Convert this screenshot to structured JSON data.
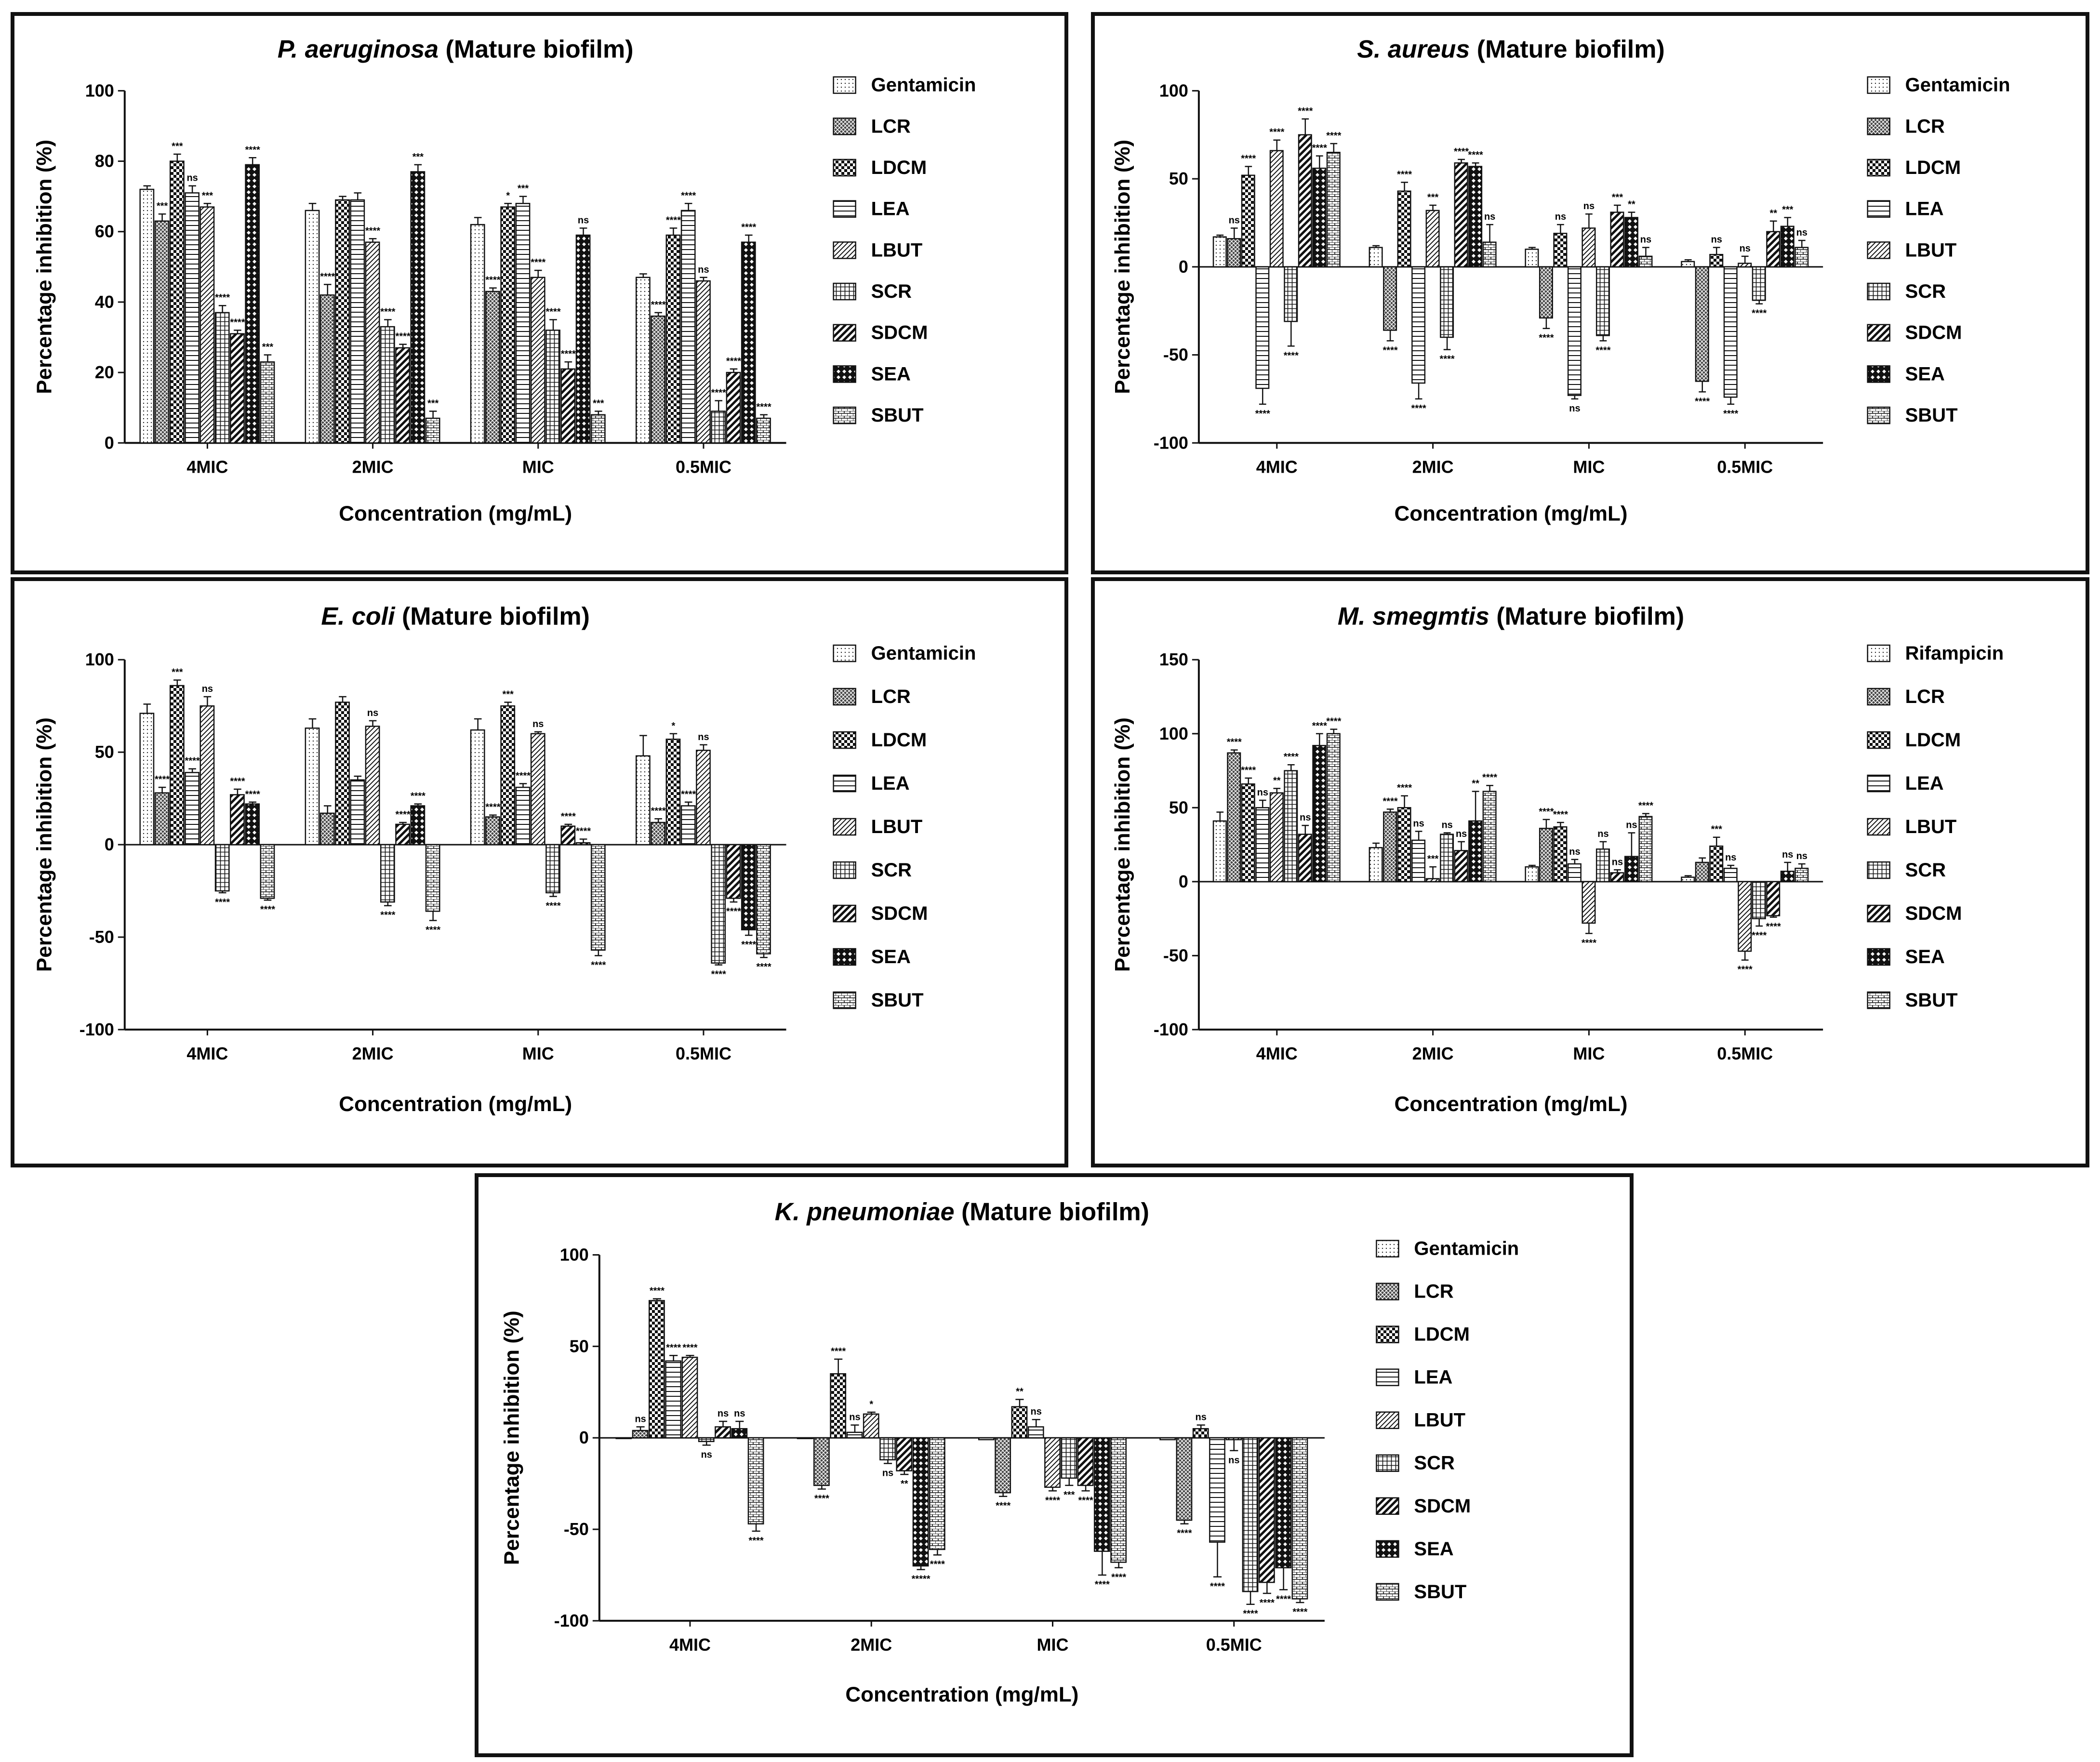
{
  "series_names": [
    "Gentamicin",
    "LCR",
    "LDCM",
    "LEA",
    "LBUT",
    "SCR",
    "SDCM",
    "SEA",
    "SBUT"
  ],
  "patterns": [
    "pdots",
    "pcross",
    "pcheck",
    "phoriz",
    "pdiag",
    "pgrid",
    "pdiagthick",
    "pdiamond",
    "pbrick"
  ],
  "chart_data": [
    {
      "id": "p1",
      "type": "bar",
      "title_italic": "P. aeruginosa",
      "title_rest": " (Mature biofilm)",
      "xlabel": "Concentration (mg/mL)",
      "ylabel": "Percentage inhibition (%)",
      "categories": [
        "4MIC",
        "2MIC",
        "MIC",
        "0.5MIC"
      ],
      "ylim": [
        0,
        100
      ],
      "yticks": [
        0,
        20,
        40,
        60,
        80,
        100
      ],
      "series": [
        {
          "name": "Gentamicin",
          "values": [
            72,
            66,
            62,
            47
          ],
          "err": [
            1,
            2,
            2,
            1
          ],
          "sig": [
            "",
            "",
            "",
            ""
          ]
        },
        {
          "name": "LCR",
          "values": [
            63,
            42,
            43,
            36
          ],
          "err": [
            2,
            3,
            1,
            1
          ],
          "sig": [
            "***",
            "****",
            "****",
            "****"
          ]
        },
        {
          "name": "LDCM",
          "values": [
            80,
            69,
            67,
            59
          ],
          "err": [
            2,
            1,
            1,
            2
          ],
          "sig": [
            "***",
            "",
            "*",
            "****"
          ]
        },
        {
          "name": "LEA",
          "values": [
            71,
            69,
            68,
            66
          ],
          "err": [
            2,
            2,
            2,
            2
          ],
          "sig": [
            "ns",
            "",
            "***",
            "****"
          ]
        },
        {
          "name": "LBUT",
          "values": [
            67,
            57,
            47,
            46
          ],
          "err": [
            1,
            1,
            2,
            1
          ],
          "sig": [
            "***",
            "****",
            "****",
            "ns"
          ]
        },
        {
          "name": "SCR",
          "values": [
            37,
            33,
            32,
            9
          ],
          "err": [
            2,
            2,
            3,
            3
          ],
          "sig": [
            "****",
            "****",
            "****",
            "****"
          ]
        },
        {
          "name": "SDCM",
          "values": [
            31,
            27,
            21,
            20
          ],
          "err": [
            1,
            1,
            2,
            1
          ],
          "sig": [
            "****",
            "****",
            "****",
            "****"
          ]
        },
        {
          "name": "SEA",
          "values": [
            79,
            77,
            59,
            57
          ],
          "err": [
            2,
            2,
            2,
            2
          ],
          "sig": [
            "****",
            "***",
            "ns",
            "****"
          ]
        },
        {
          "name": "SBUT",
          "values": [
            23,
            7,
            8,
            7
          ],
          "err": [
            2,
            2,
            1,
            1
          ],
          "sig": [
            "***",
            "***",
            "***",
            "****"
          ]
        }
      ],
      "legend": [
        "Gentamicin",
        "LCR",
        "LDCM",
        "LEA",
        "LBUT",
        "SCR",
        "SDCM",
        "SEA",
        "SBUT"
      ]
    },
    {
      "id": "p2",
      "type": "bar",
      "title_italic": "S. aureus",
      "title_rest": " (Mature biofilm)",
      "xlabel": "Concentration (mg/mL)",
      "ylabel": "Percentage inhibition (%)",
      "categories": [
        "4MIC",
        "2MIC",
        "MIC",
        "0.5MIC"
      ],
      "ylim": [
        -100,
        100
      ],
      "yticks": [
        -100,
        -50,
        0,
        50,
        100
      ],
      "series": [
        {
          "name": "Gentamicin",
          "values": [
            17,
            11,
            10,
            3
          ],
          "err": [
            1,
            1,
            1,
            1
          ],
          "sig": [
            "",
            "",
            "",
            ""
          ]
        },
        {
          "name": "LCR",
          "values": [
            16,
            -36,
            -29,
            -65
          ],
          "err": [
            6,
            6,
            6,
            6
          ],
          "sig": [
            "ns",
            "****",
            "****",
            "****"
          ]
        },
        {
          "name": "LDCM",
          "values": [
            52,
            43,
            19,
            7
          ],
          "err": [
            5,
            5,
            5,
            4
          ],
          "sig": [
            "****",
            "****",
            "ns",
            "ns"
          ]
        },
        {
          "name": "LEA",
          "values": [
            -69,
            -66,
            -73,
            -74
          ],
          "err": [
            9,
            9,
            2,
            4
          ],
          "sig": [
            "****",
            "****",
            "ns",
            "****"
          ]
        },
        {
          "name": "LBUT",
          "values": [
            66,
            32,
            22,
            2
          ],
          "err": [
            6,
            3,
            8,
            4
          ],
          "sig": [
            "****",
            "***",
            "ns",
            "ns"
          ]
        },
        {
          "name": "SCR",
          "values": [
            -31,
            -40,
            -39,
            -19
          ],
          "err": [
            14,
            7,
            3,
            2
          ],
          "sig": [
            "****",
            "****",
            "****",
            "****"
          ]
        },
        {
          "name": "SDCM",
          "values": [
            75,
            59,
            31,
            20
          ],
          "err": [
            9,
            2,
            4,
            6
          ],
          "sig": [
            "****",
            "****",
            "***",
            "**"
          ]
        },
        {
          "name": "SEA",
          "values": [
            56,
            57,
            28,
            23
          ],
          "err": [
            7,
            2,
            3,
            5
          ],
          "sig": [
            "****",
            "****",
            "**",
            "***"
          ]
        },
        {
          "name": "SBUT",
          "values": [
            65,
            14,
            6,
            11
          ],
          "err": [
            5,
            10,
            5,
            4
          ],
          "sig": [
            "****",
            "ns",
            "ns",
            "ns"
          ]
        }
      ],
      "legend": [
        "Gentamicin",
        "LCR",
        "LDCM",
        "LEA",
        "LBUT",
        "SCR",
        "SDCM",
        "SEA",
        "SBUT"
      ]
    },
    {
      "id": "p3",
      "type": "bar",
      "title_italic": "E. coli",
      "title_rest": " (Mature biofilm)",
      "xlabel": "Concentration (mg/mL)",
      "ylabel": "Percentage inhibition (%)",
      "categories": [
        "4MIC",
        "2MIC",
        "MIC",
        "0.5MIC"
      ],
      "ylim": [
        -100,
        100
      ],
      "yticks": [
        -100,
        -50,
        0,
        50,
        100
      ],
      "series": [
        {
          "name": "Gentamicin",
          "values": [
            71,
            63,
            62,
            48
          ],
          "err": [
            5,
            5,
            6,
            11
          ],
          "sig": [
            "",
            "",
            "",
            ""
          ]
        },
        {
          "name": "LCR",
          "values": [
            28,
            17,
            15,
            12
          ],
          "err": [
            3,
            4,
            1,
            2
          ],
          "sig": [
            "****",
            "",
            "****",
            "****"
          ]
        },
        {
          "name": "LDCM",
          "values": [
            86,
            77,
            75,
            57
          ],
          "err": [
            3,
            3,
            2,
            3
          ],
          "sig": [
            "***",
            "",
            "***",
            "*"
          ]
        },
        {
          "name": "LEA",
          "values": [
            39,
            35,
            31,
            21
          ],
          "err": [
            2,
            2,
            2,
            2
          ],
          "sig": [
            "****",
            "",
            "****",
            "****"
          ]
        },
        {
          "name": "LBUT",
          "values": [
            75,
            64,
            60,
            51
          ],
          "err": [
            5,
            3,
            1,
            3
          ],
          "sig": [
            "ns",
            "ns",
            "ns",
            "ns"
          ]
        },
        {
          "name": "SCR",
          "values": [
            -25,
            -31,
            -26,
            -64
          ],
          "err": [
            1,
            2,
            2,
            1
          ],
          "sig": [
            "****",
            "****",
            "****",
            "****"
          ]
        },
        {
          "name": "SDCM",
          "values": [
            27,
            11,
            10,
            -29
          ],
          "err": [
            3,
            1,
            1,
            2
          ],
          "sig": [
            "****",
            "****",
            "****",
            "****"
          ]
        },
        {
          "name": "SEA",
          "values": [
            22,
            21,
            1,
            -46
          ],
          "err": [
            1,
            1,
            2,
            3
          ],
          "sig": [
            "****",
            "****",
            "****",
            "****"
          ]
        },
        {
          "name": "SBUT",
          "values": [
            -29,
            -36,
            -57,
            -59
          ],
          "err": [
            1,
            5,
            3,
            2
          ],
          "sig": [
            "****",
            "****",
            "****",
            "****"
          ]
        }
      ],
      "legend": [
        "Gentamicin",
        "LCR",
        "LDCM",
        "LEA",
        "LBUT",
        "SCR",
        "SDCM",
        "SEA",
        "SBUT"
      ]
    },
    {
      "id": "p4",
      "type": "bar",
      "title_italic": "M. smegmtis",
      "title_rest": " (Mature biofilm)",
      "xlabel": "Concentration (mg/mL)",
      "ylabel": "Percentage inhibition (%)",
      "categories": [
        "4MIC",
        "2MIC",
        "MIC",
        "0.5MIC"
      ],
      "ylim": [
        -100,
        150
      ],
      "yticks": [
        -100,
        -50,
        0,
        50,
        100,
        150
      ],
      "series": [
        {
          "name": "Rifampicin",
          "values": [
            41,
            23,
            10,
            3
          ],
          "err": [
            6,
            3,
            1,
            1
          ],
          "sig": [
            "",
            "",
            "",
            ""
          ]
        },
        {
          "name": "LCR",
          "values": [
            87,
            47,
            36,
            13
          ],
          "err": [
            2,
            2,
            6,
            3
          ],
          "sig": [
            "****",
            "****",
            "****",
            ""
          ]
        },
        {
          "name": "LDCM",
          "values": [
            66,
            50,
            37,
            24
          ],
          "err": [
            4,
            8,
            3,
            6
          ],
          "sig": [
            "****",
            "****",
            "****",
            "***"
          ]
        },
        {
          "name": "LEA",
          "values": [
            50,
            28,
            12,
            9
          ],
          "err": [
            5,
            6,
            3,
            2
          ],
          "sig": [
            "ns",
            "ns",
            "ns",
            "ns"
          ]
        },
        {
          "name": "LBUT",
          "values": [
            60,
            2,
            -28,
            -47
          ],
          "err": [
            3,
            8,
            7,
            6
          ],
          "sig": [
            "**",
            "***",
            "****",
            "****"
          ]
        },
        {
          "name": "SCR",
          "values": [
            75,
            32,
            22,
            -25
          ],
          "err": [
            4,
            1,
            5,
            5
          ],
          "sig": [
            "****",
            "ns",
            "ns",
            "****"
          ]
        },
        {
          "name": "SDCM",
          "values": [
            32,
            21,
            6,
            -23
          ],
          "err": [
            6,
            6,
            2,
            1
          ],
          "sig": [
            "ns",
            "ns",
            "ns",
            "****"
          ]
        },
        {
          "name": "SEA",
          "values": [
            92,
            41,
            17,
            7
          ],
          "err": [
            8,
            20,
            16,
            6
          ],
          "sig": [
            "****",
            "**",
            "ns",
            "ns"
          ]
        },
        {
          "name": "SBUT",
          "values": [
            100,
            61,
            44,
            9
          ],
          "err": [
            3,
            4,
            2,
            3
          ],
          "sig": [
            "****",
            "****",
            "****",
            "ns"
          ]
        }
      ],
      "legend": [
        "Rifampicin",
        "LCR",
        "LDCM",
        "LEA",
        "LBUT",
        "SCR",
        "SDCM",
        "SEA",
        "SBUT"
      ]
    },
    {
      "id": "p5",
      "type": "bar",
      "title_italic": "K. pneumoniae",
      "title_rest": " (Mature biofilm)",
      "xlabel": "Concentration (mg/mL)",
      "ylabel": "Percentage inhibition (%)",
      "categories": [
        "4MIC",
        "2MIC",
        "MIC",
        "0.5MIC"
      ],
      "ylim": [
        -100,
        100
      ],
      "yticks": [
        -100,
        -50,
        0,
        50,
        100
      ],
      "series": [
        {
          "name": "Gentamicin",
          "values": [
            0,
            0,
            -1,
            -1
          ],
          "err": [
            0,
            0,
            0,
            0
          ],
          "sig": [
            "",
            "",
            "",
            ""
          ]
        },
        {
          "name": "LCR",
          "values": [
            4,
            -26,
            -30,
            -45
          ],
          "err": [
            2,
            2,
            2,
            2
          ],
          "sig": [
            "ns",
            "****",
            "****",
            "****"
          ]
        },
        {
          "name": "LDCM",
          "values": [
            75,
            35,
            17,
            5
          ],
          "err": [
            1,
            8,
            4,
            2
          ],
          "sig": [
            "****",
            "****",
            "**",
            "ns"
          ]
        },
        {
          "name": "LEA",
          "values": [
            42,
            3,
            6,
            -57
          ],
          "err": [
            3,
            4,
            4,
            19
          ],
          "sig": [
            "****",
            "ns",
            "ns",
            "****"
          ]
        },
        {
          "name": "LBUT",
          "values": [
            44,
            13,
            -27,
            -1
          ],
          "err": [
            1,
            1,
            2,
            6
          ],
          "sig": [
            "****",
            "*",
            "****",
            "ns"
          ]
        },
        {
          "name": "SCR",
          "values": [
            -2,
            -12,
            -22,
            -84
          ],
          "err": [
            2,
            2,
            4,
            7
          ],
          "sig": [
            "ns",
            "ns",
            "***",
            "****"
          ]
        },
        {
          "name": "SDCM",
          "values": [
            6,
            -18,
            -26,
            -79
          ],
          "err": [
            3,
            2,
            3,
            6
          ],
          "sig": [
            "ns",
            "**",
            "****",
            "****"
          ]
        },
        {
          "name": "SEA",
          "values": [
            5,
            -70,
            -62,
            -71
          ],
          "err": [
            4,
            2,
            13,
            12
          ],
          "sig": [
            "ns",
            "*****",
            "****",
            "****"
          ]
        },
        {
          "name": "SBUT",
          "values": [
            -47,
            -61,
            -68,
            -88
          ],
          "err": [
            4,
            3,
            3,
            2
          ],
          "sig": [
            "****",
            "****",
            "****",
            "****"
          ]
        }
      ],
      "legend": [
        "Gentamicin",
        "LCR",
        "LDCM",
        "LEA",
        "LBUT",
        "SCR",
        "SDCM",
        "SEA",
        "SBUT"
      ]
    }
  ]
}
